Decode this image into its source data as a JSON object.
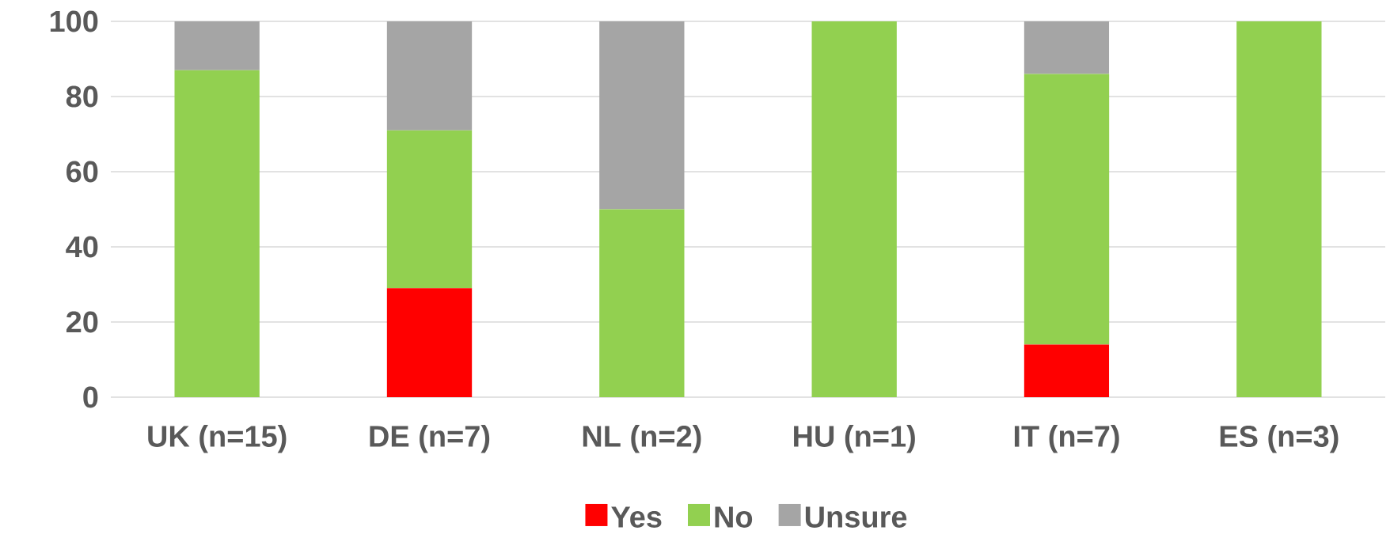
{
  "chart_data": {
    "type": "bar",
    "stacked": true,
    "categories": [
      "UK (n=15)",
      "DE (n=7)",
      "NL (n=2)",
      "HU (n=1)",
      "IT (n=7)",
      "ES (n=3)"
    ],
    "series": [
      {
        "name": "Yes",
        "color": "#ff0000",
        "values": [
          0,
          29,
          0,
          0,
          14,
          0
        ]
      },
      {
        "name": "No",
        "color": "#92d050",
        "values": [
          87,
          42,
          50,
          100,
          72,
          100
        ]
      },
      {
        "name": "Unsure",
        "color": "#a5a5a5",
        "values": [
          13,
          29,
          50,
          0,
          14,
          0
        ]
      }
    ],
    "ylim": [
      0,
      100
    ],
    "yticks": [
      0,
      20,
      40,
      60,
      80,
      100
    ],
    "grid": "y",
    "legend": "bottom"
  }
}
